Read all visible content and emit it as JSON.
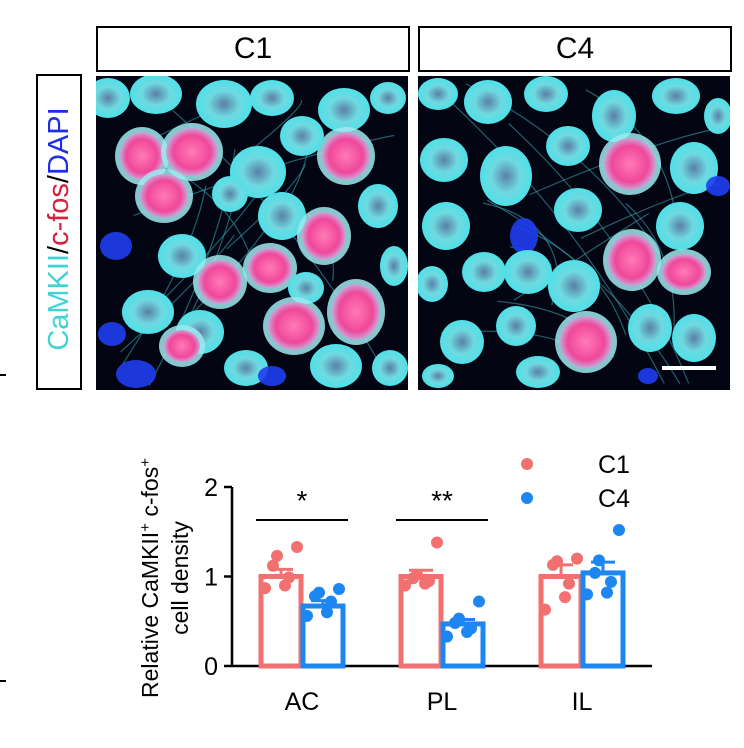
{
  "panels": [
    {
      "label": "C1"
    },
    {
      "label": "C4"
    }
  ],
  "stain_label": {
    "parts": [
      {
        "text": "CaMKII",
        "color": "#3fd3d3"
      },
      {
        "text": "/",
        "color": "#000000"
      },
      {
        "text": "c-fos",
        "color": "#d81e3c"
      },
      {
        "text": "/",
        "color": "#000000"
      },
      {
        "text": "DAPI",
        "color": "#1c2fe6"
      }
    ]
  },
  "scale_bar": {
    "color": "#ffffff"
  },
  "chart_data": {
    "type": "bar",
    "categories": [
      "AC",
      "PL",
      "IL"
    ],
    "ylabel_line1": "Relative CaMKII",
    "ylabel_sup1": "+",
    "ylabel_mid": " c-fos",
    "ylabel_sup2": "+",
    "ylabel_line2": "cell density",
    "ylim": [
      0,
      2
    ],
    "yticks": [
      0,
      1,
      2
    ],
    "legend": {
      "placement": "top-right"
    },
    "series": [
      {
        "name": "C1",
        "color": "#f2706f",
        "values": [
          1.0,
          1.0,
          1.0
        ],
        "sem": [
          0.08,
          0.07,
          0.13
        ],
        "points": [
          [
            0.87,
            0.9,
            0.99,
            1.12,
            1.23,
            1.33
          ],
          [
            0.9,
            0.92,
            0.95,
            0.98,
            1.02,
            1.38
          ],
          [
            0.63,
            0.77,
            0.92,
            1.13,
            1.17,
            1.2
          ]
        ]
      },
      {
        "name": "C4",
        "color": "#1e86f0",
        "values": [
          0.67,
          0.47,
          1.04
        ],
        "sem": [
          0.06,
          0.05,
          0.12
        ],
        "points": [
          [
            0.56,
            0.6,
            0.72,
            0.78,
            0.82,
            0.86
          ],
          [
            0.33,
            0.38,
            0.42,
            0.48,
            0.53,
            0.72
          ],
          [
            0.8,
            0.82,
            0.94,
            1.04,
            1.18,
            1.52
          ]
        ]
      }
    ],
    "significance": [
      {
        "category": "AC",
        "label": "*"
      },
      {
        "category": "PL",
        "label": "**"
      }
    ]
  }
}
